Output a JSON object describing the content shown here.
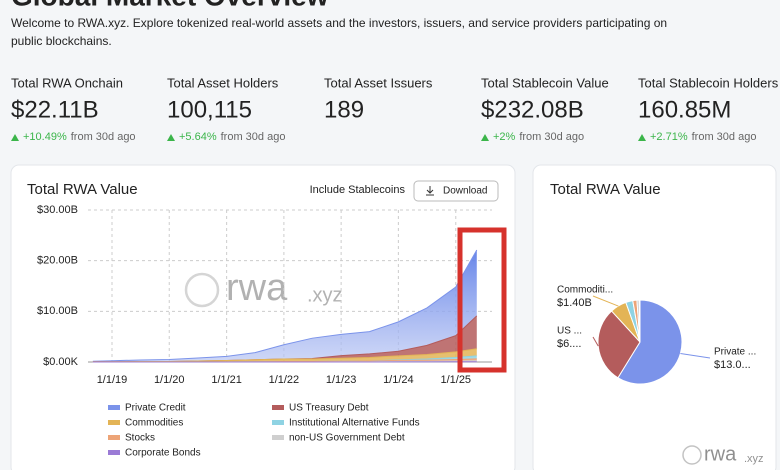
{
  "header": {
    "title": "Global Market Overview",
    "subtitle_lines": [
      "Welcome to RWA.xyz. Explore tokenized real-world assets and the investors, issuers, and service providers participating on",
      "public blockchains."
    ]
  },
  "stats": [
    {
      "label": "Total RWA Onchain",
      "value": "$22.11B",
      "change": "+10.49%",
      "note": "from 30d ago"
    },
    {
      "label": "Total Asset Holders",
      "value": "100,115",
      "change": "+5.64%",
      "note": "from 30d ago"
    },
    {
      "label": "Total Asset Issuers",
      "value": "189"
    },
    {
      "label": "Total Stablecoin Value",
      "value": "$232.08B",
      "change": "+2%",
      "note": "from 30d ago"
    },
    {
      "label": "Total Stablecoin Holders",
      "value": "160.85M",
      "change": "+2.71%",
      "note": "from 30d ago"
    }
  ],
  "controls": {
    "toggle": "Include Stablecoins",
    "download": "Download"
  },
  "watermark": {
    "main": "rwa",
    "suffix": ".xyz"
  },
  "chart_data": [
    {
      "type": "area",
      "stacked": true,
      "title": "Total RWA Value",
      "x": [
        "2018-09-01",
        "2019-01-01",
        "2019-07-01",
        "2020-01-01",
        "2020-07-01",
        "2021-01-01",
        "2021-07-01",
        "2022-01-01",
        "2022-07-01",
        "2023-01-01",
        "2023-07-01",
        "2024-01-01",
        "2024-07-01",
        "2025-01-01",
        "2025-05-15"
      ],
      "xlim": [
        "2018-08-01",
        "2025-08-20"
      ],
      "xticks": [
        {
          "value": "2019-01-01",
          "label": "1/1/19"
        },
        {
          "value": "2020-01-01",
          "label": "1/1/20"
        },
        {
          "value": "2021-01-01",
          "label": "1/1/21"
        },
        {
          "value": "2022-01-01",
          "label": "1/1/22"
        },
        {
          "value": "2023-01-01",
          "label": "1/1/23"
        },
        {
          "value": "2024-01-01",
          "label": "1/1/24"
        },
        {
          "value": "2025-01-01",
          "label": "1/1/25"
        }
      ],
      "ylim": [
        0,
        30
      ],
      "yticks": [
        {
          "value": 0,
          "label": "$0.00K"
        },
        {
          "value": 10,
          "label": "$10.00B"
        },
        {
          "value": 20,
          "label": "$20.00B"
        },
        {
          "value": 30,
          "label": "$30.00B"
        }
      ],
      "grid": true,
      "series": [
        {
          "name": "Private Credit",
          "color": "#7b93ea",
          "values": [
            0.1,
            0.2,
            0.3,
            0.4,
            0.6,
            0.8,
            1.4,
            2.8,
            4.0,
            4.2,
            4.4,
            5.8,
            7.4,
            9.6,
            13.0
          ]
        },
        {
          "name": "US Treasury Debt",
          "color": "#b45c5c",
          "values": [
            0,
            0,
            0,
            0,
            0,
            0,
            0,
            0,
            0.1,
            0.5,
            0.7,
            0.9,
            1.8,
            3.2,
            6.5
          ]
        },
        {
          "name": "Commodities",
          "color": "#e3b456",
          "values": [
            0.05,
            0.05,
            0.1,
            0.1,
            0.2,
            0.3,
            0.4,
            0.5,
            0.5,
            0.6,
            0.7,
            0.8,
            0.9,
            1.1,
            1.4
          ]
        },
        {
          "name": "Institutional Alternative Funds",
          "color": "#8fd3e3",
          "values": [
            0,
            0,
            0,
            0,
            0,
            0,
            0,
            0,
            0,
            0,
            0,
            0.1,
            0.2,
            0.4,
            0.6
          ]
        },
        {
          "name": "Stocks",
          "color": "#eda477",
          "values": [
            0,
            0,
            0,
            0,
            0,
            0,
            0.05,
            0.1,
            0.1,
            0.1,
            0.15,
            0.2,
            0.25,
            0.3,
            0.35
          ]
        },
        {
          "name": "non-US Government Debt",
          "color": "#cfcfcf",
          "values": [
            0,
            0,
            0,
            0,
            0,
            0,
            0,
            0,
            0,
            0.05,
            0.05,
            0.1,
            0.1,
            0.15,
            0.2
          ]
        },
        {
          "name": "Corporate Bonds",
          "color": "#9b7bd6",
          "values": [
            0,
            0,
            0,
            0,
            0,
            0,
            0,
            0,
            0,
            0,
            0,
            0.02,
            0.03,
            0.05,
            0.06
          ]
        }
      ]
    },
    {
      "type": "pie",
      "title": "Total RWA Value",
      "categories": [
        "Private ...",
        "US ...",
        "Commoditi...",
        null,
        null,
        null,
        null
      ],
      "values": [
        13.0,
        6.5,
        1.4,
        0.6,
        0.35,
        0.2,
        0.06
      ],
      "value_labels": [
        "$13.0...",
        "$6....",
        "$1.40B",
        null,
        null,
        null,
        null
      ],
      "colors": [
        "#7b93ea",
        "#b45c5c",
        "#e3b456",
        "#8fd3e3",
        "#eda477",
        "#cfcfcf",
        "#9b7bd6"
      ]
    }
  ]
}
